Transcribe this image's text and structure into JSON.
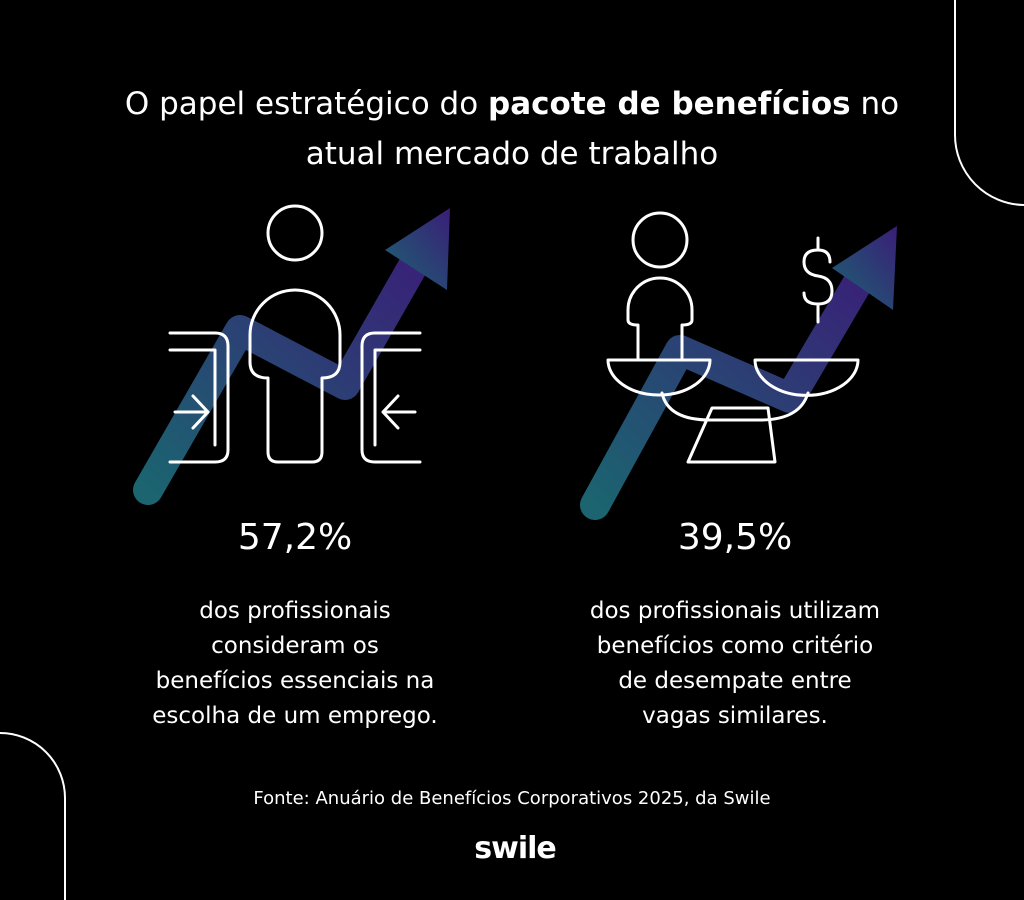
{
  "title": {
    "before": "O papel estratégico do",
    "bold": "pacote de benefícios",
    "after": "no",
    "line2": "atual mercado de trabalho"
  },
  "stats": [
    {
      "value": "57,2%",
      "description": [
        "dos profissionais",
        "consideram os",
        "benefícios essenciais na",
        "escolha de um emprego."
      ]
    },
    {
      "value": "39,5%",
      "description": [
        "dos profissionais utilizam",
        "benefícios como critério",
        "de desempate entre",
        "vagas similares."
      ]
    }
  ],
  "source": "Fonte: Anuário de Benefícios Corporativos 2025, da Swile",
  "logo": "swile"
}
